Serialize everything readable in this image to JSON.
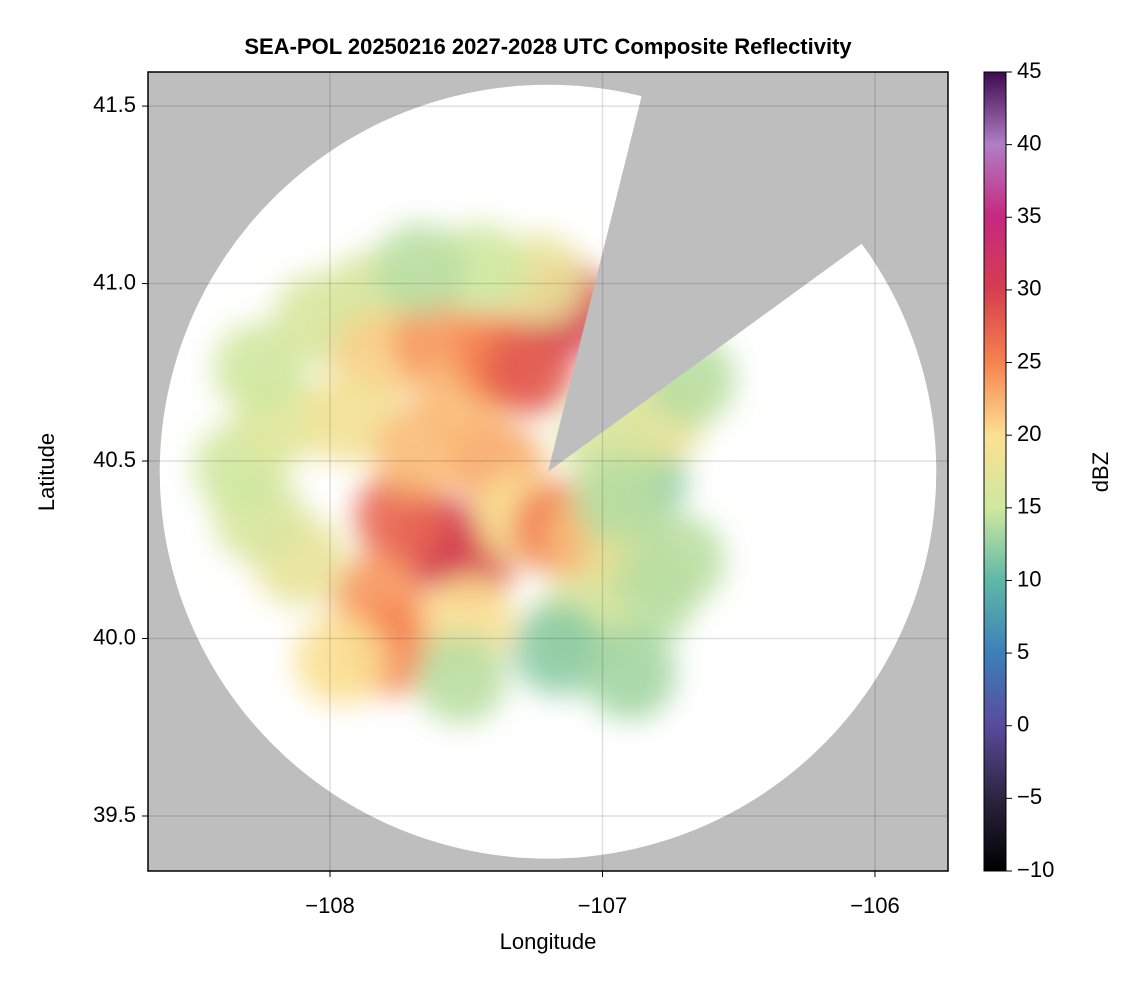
{
  "chart_data": {
    "type": "radar-map",
    "title": "SEA-POL 20250216 2027-2028 UTC Composite Reflectivity",
    "xlabel": "Longitude",
    "ylabel": "Latitude",
    "xlim": [
      -108.668,
      -105.732
    ],
    "ylim": [
      39.345,
      41.596
    ],
    "xticks": [
      {
        "value": -108,
        "label": "−108"
      },
      {
        "value": -107,
        "label": "−107"
      },
      {
        "value": -106,
        "label": "−106"
      }
    ],
    "yticks": [
      {
        "value": 39.5,
        "label": "39.5"
      },
      {
        "value": 40.0,
        "label": "40.0"
      },
      {
        "value": 40.5,
        "label": "40.5"
      },
      {
        "value": 41.0,
        "label": "41.0"
      },
      {
        "value": 41.5,
        "label": "41.5"
      }
    ],
    "grid": true,
    "background_color": "#bebebe",
    "radar": {
      "center": [
        -107.2,
        40.47
      ],
      "range": [
        1.425,
        1.09
      ],
      "blocked_azimuth": [
        14,
        54
      ]
    },
    "x": [
      -107.6,
      -107.49,
      -107.74,
      -107.82,
      -107.78,
      -107.96,
      -108.11,
      -108.26,
      -108.33,
      -108.18,
      -108.26,
      -108.04,
      -107.85,
      -107.82,
      -107.6,
      -107.52,
      -107.38,
      -107.27,
      -107.12,
      -107.23,
      -107.45,
      -107.67,
      -107.93,
      -107.67,
      -107.38,
      -107.3,
      -107.16,
      -107.05,
      -106.9,
      -106.72,
      -106.83,
      -107.08,
      -107.16,
      -107.49,
      -107.52,
      -106.86,
      -106.79,
      -106.68,
      -106.99,
      -106.94,
      -106.9
    ],
    "y": [
      40.27,
      40.22,
      40.34,
      40.11,
      39.97,
      39.94,
      40.22,
      40.34,
      40.48,
      40.62,
      40.76,
      40.9,
      40.96,
      40.79,
      40.84,
      40.67,
      40.79,
      40.76,
      40.93,
      41.01,
      41.04,
      41.04,
      40.62,
      40.53,
      40.48,
      40.34,
      40.31,
      40.28,
      40.22,
      40.22,
      40.11,
      40.05,
      39.97,
      40.05,
      39.89,
      40.45,
      40.62,
      40.73,
      40.56,
      40.39,
      39.9
    ],
    "values": [
      33,
      30,
      27,
      24,
      25,
      20,
      18,
      16,
      15,
      17,
      15,
      16,
      16,
      21,
      24,
      22,
      25,
      28,
      30,
      18,
      15,
      14,
      19,
      22,
      23,
      20,
      26,
      22,
      18,
      14,
      14,
      16,
      12,
      20,
      14,
      12,
      18,
      14,
      16,
      14,
      13
    ],
    "colorbar": {
      "label": "dBZ",
      "lim": [
        -10,
        45
      ],
      "ticks": [
        {
          "value": -10,
          "label": "−10"
        },
        {
          "value": -5,
          "label": "−5"
        },
        0,
        5,
        10,
        15,
        20,
        25,
        30,
        35,
        40,
        45
      ],
      "colors": [
        "#000000",
        "#2b2540",
        "#5a4a9c",
        "#3d7fba",
        "#5fb8a6",
        "#cfe8a0",
        "#fbe092",
        "#f6834f",
        "#d53e4f",
        "#c6287e",
        "#b07ec4",
        "#3f0a4e"
      ]
    }
  }
}
